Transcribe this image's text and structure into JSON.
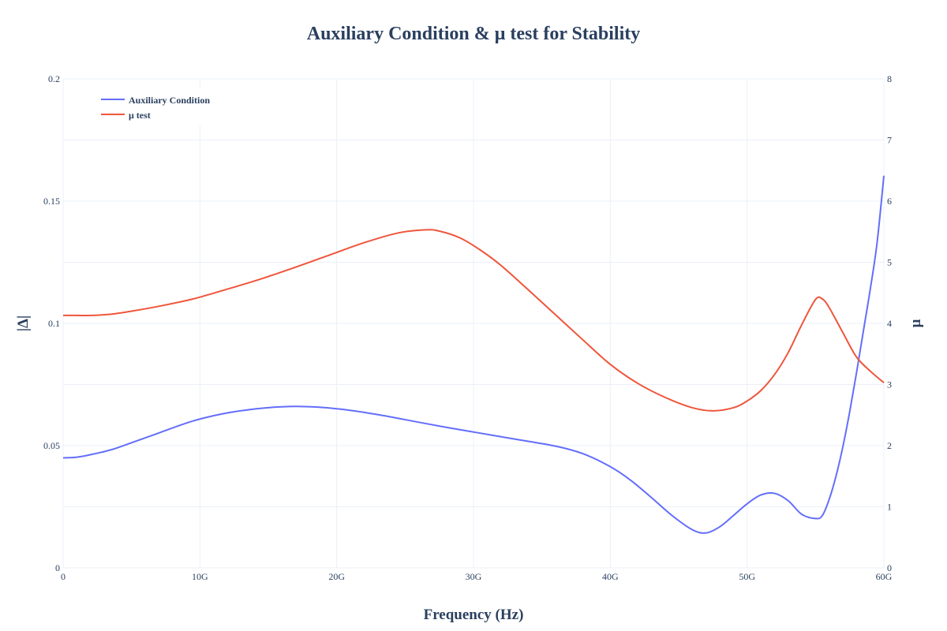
{
  "chart_data": {
    "type": "line",
    "title": "Auxiliary Condition & μ test for Stability",
    "xlabel": "Frequency (Hz)",
    "ylabel_left": "|Δ|",
    "ylabel_right": "μ",
    "xlim": [
      0,
      60
    ],
    "ylim_left": [
      0,
      0.2
    ],
    "ylim_right": [
      0,
      8
    ],
    "x_tick_values": [
      0,
      10,
      20,
      30,
      40,
      50,
      60
    ],
    "x_tick_labels": [
      "0",
      "10G",
      "20G",
      "30G",
      "40G",
      "50G",
      "60G"
    ],
    "y_left_tick_values": [
      0,
      0.05,
      0.1,
      0.15,
      0.2
    ],
    "y_left_tick_labels": [
      "0",
      "0.05",
      "0.1",
      "0.15",
      "0.2"
    ],
    "y_right_tick_values": [
      0,
      1,
      2,
      3,
      4,
      5,
      6,
      7,
      8
    ],
    "y_right_tick_labels": [
      "0",
      "1",
      "2",
      "3",
      "4",
      "5",
      "6",
      "7",
      "8"
    ],
    "grid": true,
    "legend_position": "top-left",
    "series": [
      {
        "name": "Auxiliary Condition",
        "axis": "left",
        "color": "#636efa",
        "x": [
          0,
          1,
          2,
          3.5,
          5,
          7,
          9.5,
          12,
          14.5,
          16.5,
          18.5,
          20.5,
          23,
          25.5,
          28,
          30.5,
          33,
          36,
          38,
          40,
          41.5,
          43,
          44.5,
          46,
          47,
          48,
          49,
          50,
          51,
          52,
          53,
          54,
          55,
          55.5,
          56,
          56.5,
          57,
          57.5,
          58,
          58.5,
          59,
          59.5,
          60
        ],
        "values": [
          0.045,
          0.0453,
          0.0463,
          0.0483,
          0.0512,
          0.0552,
          0.0601,
          0.0634,
          0.0653,
          0.066,
          0.0658,
          0.0648,
          0.0627,
          0.0601,
          0.0575,
          0.0551,
          0.0527,
          0.0498,
          0.0467,
          0.0414,
          0.0358,
          0.0288,
          0.0215,
          0.0156,
          0.0143,
          0.0168,
          0.0214,
          0.0262,
          0.0298,
          0.0305,
          0.0275,
          0.0219,
          0.0202,
          0.0214,
          0.028,
          0.0375,
          0.0495,
          0.0638,
          0.0798,
          0.0968,
          0.1138,
          0.1328,
          0.1604
        ]
      },
      {
        "name": "μ test",
        "axis": "right",
        "color": "#ef553b",
        "x": [
          0,
          1,
          2,
          3.5,
          5,
          7,
          9.5,
          12,
          14.5,
          17,
          19.5,
          22,
          24.5,
          26.5,
          27.5,
          29,
          30.5,
          32,
          34,
          36,
          38,
          40,
          42,
          44,
          46,
          47.5,
          49,
          50,
          51,
          52,
          53,
          54,
          55,
          55.5,
          56,
          57,
          58,
          59,
          60
        ],
        "values": [
          4.13,
          4.13,
          4.13,
          4.15,
          4.2,
          4.28,
          4.4,
          4.56,
          4.73,
          4.92,
          5.12,
          5.32,
          5.48,
          5.53,
          5.51,
          5.4,
          5.2,
          4.95,
          4.55,
          4.14,
          3.73,
          3.33,
          3.02,
          2.79,
          2.62,
          2.57,
          2.62,
          2.73,
          2.9,
          3.16,
          3.52,
          3.98,
          4.39,
          4.4,
          4.26,
          3.85,
          3.45,
          3.22,
          3.03
        ]
      }
    ]
  }
}
